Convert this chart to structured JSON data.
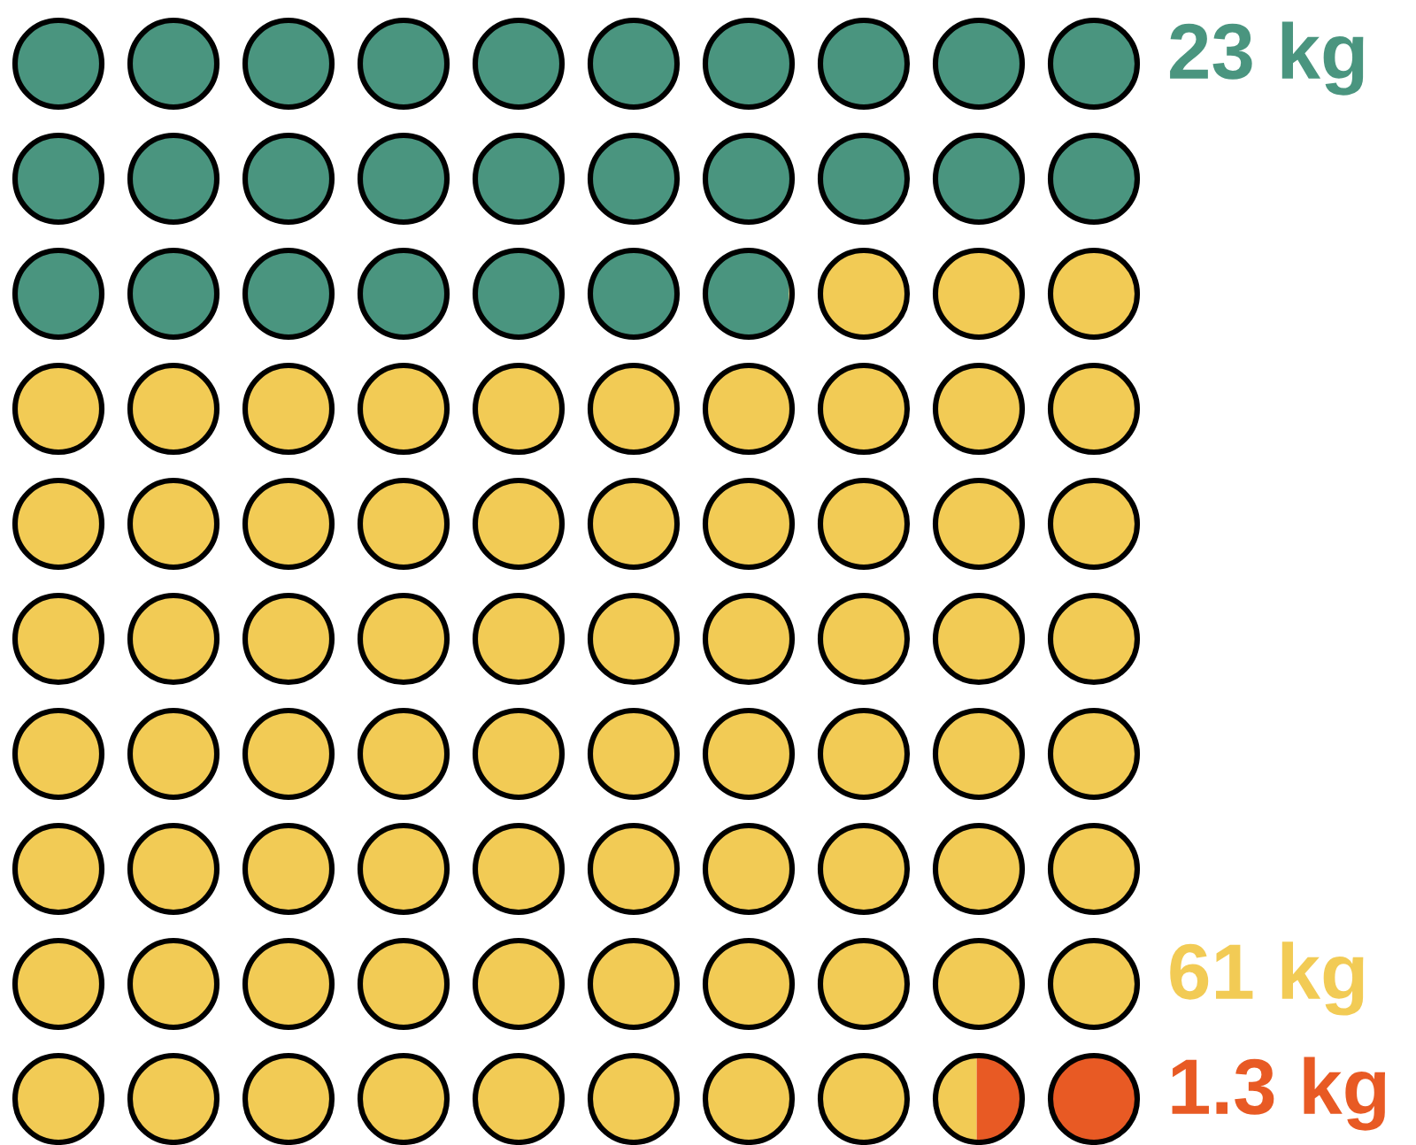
{
  "chart_data": {
    "type": "other",
    "values": [
      23,
      61,
      1.3
    ],
    "value_labels": [
      "23 kg",
      "61 kg",
      "1.3 kg"
    ],
    "colors": [
      "#4a957f",
      "#f2cb55",
      "#e85a24"
    ]
  }
}
